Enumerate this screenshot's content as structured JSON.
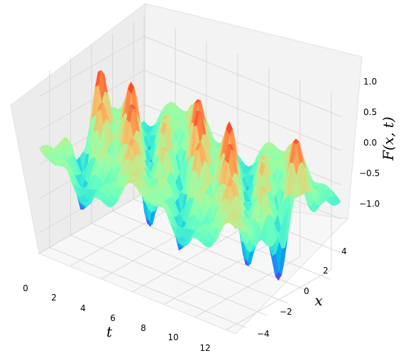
{
  "chart_data": {
    "type": "surface",
    "xlabel": "t",
    "ylabel": "x",
    "zlabel": "F(x, t)",
    "x_ticks": [
      "0",
      "2",
      "4",
      "6",
      "8",
      "10",
      "12"
    ],
    "y_ticks": [
      "−4",
      "−2",
      "0",
      "2",
      "4"
    ],
    "z_ticks": [
      "−1.0",
      "−0.5",
      "0.0",
      "0.5",
      "1.0"
    ],
    "t_range": [
      0,
      12.6
    ],
    "x_range": [
      -5,
      5
    ],
    "z_range": [
      -1.3,
      1.3
    ],
    "colormap": "rainbow",
    "grid": true
  },
  "colors": {
    "pane_left": "#ededed",
    "pane_back": "#f2f2f2",
    "pane_floor": "#f7f7f7",
    "grid": "#d8d8d8"
  }
}
